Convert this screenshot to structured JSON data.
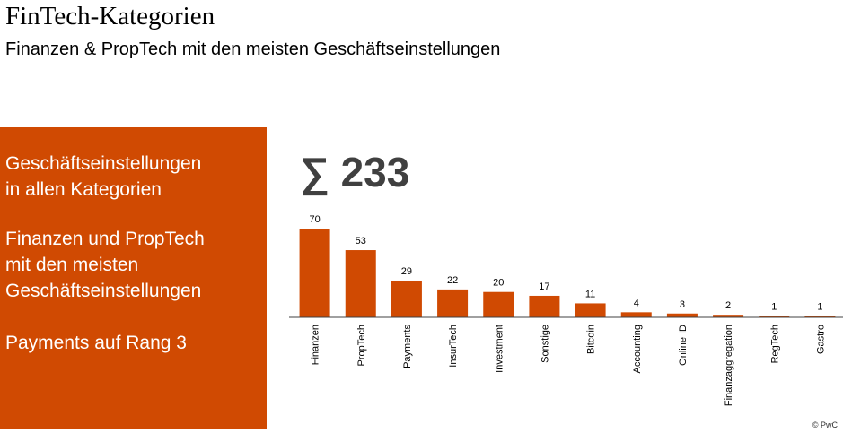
{
  "header": {
    "title": "FinTech-Kategorien",
    "subtitle": "Finanzen & PropTech mit den meisten Geschäftseinstellungen"
  },
  "panel": {
    "items": [
      {
        "lines": [
          "Geschäftseinstellungen",
          "in allen Kategorien"
        ]
      },
      {
        "lines": [
          "Finanzen und PropTech",
          "mit den meisten",
          "Geschäftseinstellungen"
        ]
      },
      {
        "lines": [
          "Payments auf Rang 3"
        ]
      }
    ]
  },
  "chart_data": {
    "type": "bar",
    "annotation": "∑ 233",
    "categories": [
      "Finanzen",
      "PropTech",
      "Payments",
      "InsurTech",
      "Investment",
      "Sonstige",
      "Bitcoin",
      "Accounting",
      "Online ID",
      "Finanzaggregation",
      "RegTech",
      "Gastro"
    ],
    "values": [
      70,
      53,
      29,
      22,
      20,
      17,
      11,
      4,
      3,
      2,
      1,
      1
    ],
    "color": "#d04a02"
  },
  "footer": {
    "copyright": "© PwC"
  }
}
